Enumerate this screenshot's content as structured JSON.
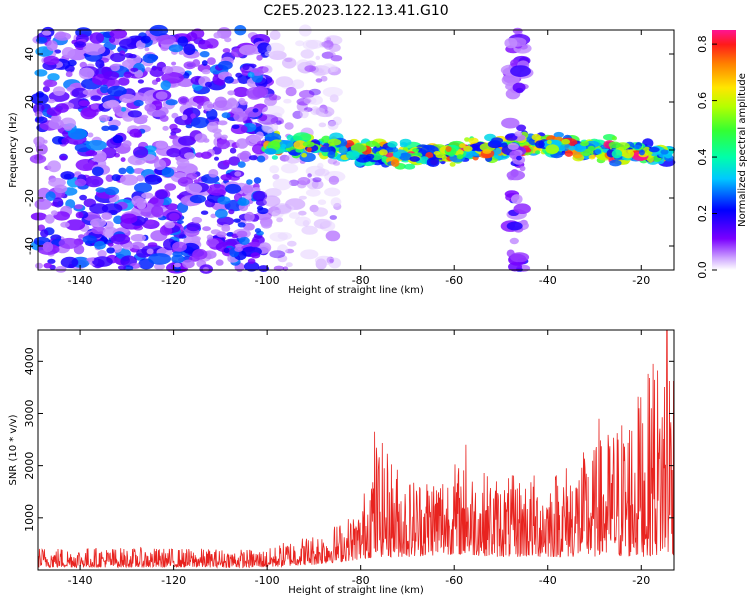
{
  "figure_title": "C2E5.2023.122.13.41.G10",
  "chart_data": [
    {
      "type": "heatmap",
      "title": "C2E5.2023.122.13.41.G10",
      "xlabel": "Height of straight line (km)",
      "ylabel": "Frequency (Hz)",
      "xlim": [
        -149,
        -13
      ],
      "ylim": [
        -50,
        50
      ],
      "xticks": [
        -140,
        -120,
        -100,
        -80,
        -60,
        -40,
        -20
      ],
      "yticks": [
        -40,
        -20,
        0,
        20,
        40
      ],
      "grid": false,
      "colorbar": {
        "label": "Normalized spectral amplitude",
        "range": [
          0.0,
          0.85
        ],
        "ticks": [
          0.0,
          0.2,
          0.4,
          0.6,
          0.8
        ],
        "colormap": "rainbow"
      },
      "description_regions": [
        {
          "x_range": [
            -149,
            -100
          ],
          "freq_range": [
            -50,
            50
          ],
          "amplitude": [
            0.05,
            0.3
          ],
          "pattern": "broadband-noise"
        },
        {
          "x_range": [
            -100,
            -85
          ],
          "freq_range": [
            -50,
            50
          ],
          "amplitude": [
            0.02,
            0.15
          ],
          "pattern": "faint-noise"
        },
        {
          "x_range": [
            -100,
            -14
          ],
          "freq_range": [
            -6,
            6
          ],
          "amplitude": [
            0.2,
            0.85
          ],
          "pattern": "narrow-band-near-0Hz"
        },
        {
          "x_range": [
            -48,
            -45
          ],
          "freq_range": [
            -50,
            50
          ],
          "amplitude": [
            0.05,
            0.2
          ],
          "pattern": "vertical-stripe"
        }
      ]
    },
    {
      "type": "line",
      "xlabel": "Height of straight line (km)",
      "ylabel": "SNR (10 * v/v)",
      "xlim": [
        -149,
        -13
      ],
      "ylim": [
        0,
        4600
      ],
      "xticks": [
        -140,
        -120,
        -100,
        -80,
        -60,
        -40,
        -20
      ],
      "yticks": [
        1000,
        2000,
        3000,
        4000
      ],
      "grid": false,
      "color": "#e8231f",
      "series": [
        {
          "values_envelope": [
            {
              "x": -149,
              "min": 50,
              "max": 450
            },
            {
              "x": -100,
              "min": 50,
              "max": 400
            },
            {
              "x": -95,
              "min": 80,
              "max": 600
            },
            {
              "x": -90,
              "min": 100,
              "max": 700
            },
            {
              "x": -85,
              "min": 150,
              "max": 900
            },
            {
              "x": -80,
              "min": 200,
              "max": 1200
            },
            {
              "x": -77,
              "min": 250,
              "max": 2650
            },
            {
              "x": -70,
              "min": 250,
              "max": 1800
            },
            {
              "x": -60,
              "min": 300,
              "max": 2100
            },
            {
              "x": -50,
              "min": 250,
              "max": 1800
            },
            {
              "x": -40,
              "min": 250,
              "max": 1900
            },
            {
              "x": -30,
              "min": 250,
              "max": 2400
            },
            {
              "x": -20,
              "min": 250,
              "max": 3500
            },
            {
              "x": -14,
              "min": 300,
              "max": 4600
            }
          ],
          "spikes": [
            {
              "x": -77,
              "y": 2650
            },
            {
              "x": -57.5,
              "y": 2400
            },
            {
              "x": -29,
              "y": 2900
            },
            {
              "x": -20.5,
              "y": 3100
            },
            {
              "x": -17.5,
              "y": 3950
            },
            {
              "x": -14.5,
              "y": 4600
            }
          ]
        }
      ]
    }
  ]
}
